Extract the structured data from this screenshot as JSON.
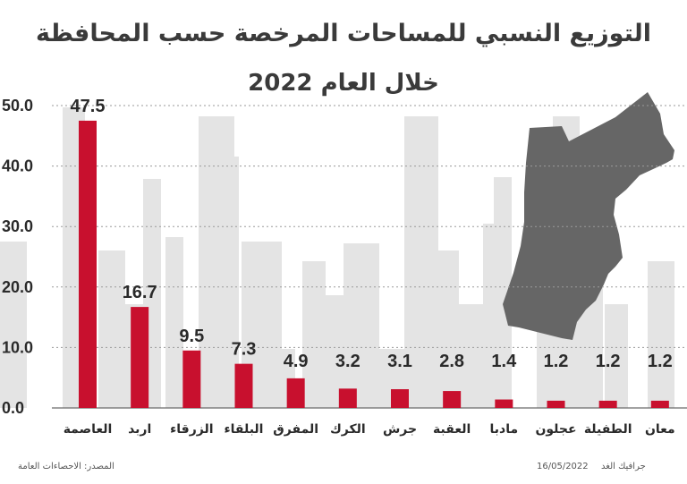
{
  "chart_data": {
    "type": "bar",
    "title": "التوزيع النسبي للمساحات المرخصة حسب المحافظة",
    "subtitle": "خلال العام 2022",
    "categories": [
      "العاصمة",
      "اربد",
      "الزرقاء",
      "البلقاء",
      "المفرق",
      "الكرك",
      "جرش",
      "العقبة",
      "مادبا",
      "عجلون",
      "الطفيلة",
      "معان"
    ],
    "values": [
      47.5,
      16.7,
      9.5,
      7.3,
      4.9,
      3.2,
      3.1,
      2.8,
      1.4,
      1.2,
      1.2,
      1.2
    ],
    "value_labels": [
      "47.5",
      "16.7",
      "9.5",
      "7.3",
      "4.9",
      "3.2",
      "3.1",
      "2.8",
      "1.4",
      "1.2",
      "1.2",
      "1.2"
    ],
    "yticks": [
      "0.0",
      "10.0",
      "20.0",
      "30.0",
      "40.0",
      "50.0"
    ],
    "ylim": [
      0,
      50
    ],
    "grid": true,
    "bar_color": "#c8102e",
    "xlabel": "",
    "ylabel": ""
  },
  "source": "المصدر: الاحصاءات العامة",
  "credit": "جرافيك الغد",
  "date": "16/05/2022"
}
